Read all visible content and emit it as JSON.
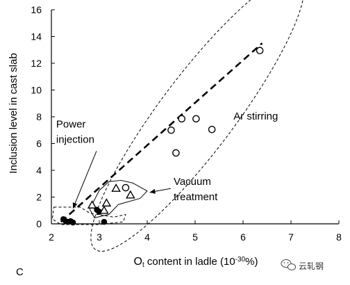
{
  "panel_label": "C",
  "watermark": {
    "text": "云轧钢",
    "icon": "wechat-icon"
  },
  "chart_data": {
    "type": "scatter",
    "xlabel": "O",
    "xlabel_sub": "t",
    "xlabel_rest": " content in ladle (10",
    "xlabel_sup": "-30",
    "xlabel_end": "%)",
    "ylabel": "Inclusion level in cast slab",
    "xlim": [
      2,
      8
    ],
    "ylim": [
      0,
      16
    ],
    "xticks": [
      2,
      3,
      4,
      5,
      6,
      7,
      8
    ],
    "yticks": [
      0,
      2,
      4,
      6,
      8,
      10,
      12,
      14,
      16
    ],
    "grid": false,
    "series": [
      {
        "name": "Power injection",
        "marker": "filled-circle",
        "points": [
          {
            "x": 2.25,
            "y": 0.35
          },
          {
            "x": 2.3,
            "y": 0.2
          },
          {
            "x": 2.35,
            "y": 0.15
          },
          {
            "x": 2.4,
            "y": 0.2
          },
          {
            "x": 2.45,
            "y": 0.1
          },
          {
            "x": 2.95,
            "y": 1.05
          },
          {
            "x": 3.0,
            "y": 0.9
          },
          {
            "x": 3.1,
            "y": 0.15
          }
        ]
      },
      {
        "name": "Vacuum treatment",
        "marker": "open-triangle",
        "points": [
          {
            "x": 2.85,
            "y": 1.4
          },
          {
            "x": 3.1,
            "y": 1.0
          },
          {
            "x": 3.15,
            "y": 1.55
          },
          {
            "x": 3.35,
            "y": 2.65
          },
          {
            "x": 3.65,
            "y": 2.15
          }
        ]
      },
      {
        "name": "Ar stirring",
        "marker": "open-circle",
        "points": [
          {
            "x": 3.55,
            "y": 2.7
          },
          {
            "x": 4.5,
            "y": 7.0
          },
          {
            "x": 4.6,
            "y": 5.3
          },
          {
            "x": 4.72,
            "y": 7.85
          },
          {
            "x": 5.02,
            "y": 7.85
          },
          {
            "x": 5.35,
            "y": 7.05
          },
          {
            "x": 6.35,
            "y": 12.95
          }
        ]
      }
    ],
    "trend_line": {
      "style": "bold-dashed",
      "points": [
        [
          2.2,
          0.15
        ],
        [
          6.4,
          13.5
        ]
      ]
    },
    "regions": [
      {
        "label": "Power injection",
        "style": "dashed",
        "path_data": [
          [
            2.05,
            1.25
          ],
          [
            2.6,
            1.25
          ],
          [
            2.8,
            0.8
          ],
          [
            3.3,
            0.5
          ],
          [
            3.55,
            0.7
          ],
          [
            3.5,
            0.15
          ],
          [
            3.0,
            -0.05
          ],
          [
            2.2,
            -0.05
          ],
          [
            2.02,
            0.35
          ],
          [
            2.05,
            1.25
          ]
        ]
      },
      {
        "label": "Vacuum treatment",
        "style": "solid",
        "path_data": [
          [
            2.8,
            1.1
          ],
          [
            3.0,
            2.5
          ],
          [
            3.2,
            3.15
          ],
          [
            3.45,
            3.25
          ],
          [
            3.7,
            3.05
          ],
          [
            4.0,
            2.45
          ],
          [
            3.85,
            1.9
          ],
          [
            3.4,
            1.45
          ],
          [
            3.2,
            0.7
          ],
          [
            2.9,
            0.45
          ],
          [
            2.8,
            1.1
          ]
        ]
      },
      {
        "label": "Ar stirring",
        "style": "dashed",
        "ellipse": {
          "cx": 5.05,
          "cy": 8.25,
          "rx": 3.55,
          "ry": 0.78,
          "angle_deg": -53
        }
      }
    ],
    "annotations": [
      {
        "text_lines": [
          "Power",
          "injection"
        ],
        "at": [
          2.1,
          7.2
        ],
        "arrow_to": [
          2.45,
          1.15
        ]
      },
      {
        "text_lines": [
          "Vacuum",
          "treatment"
        ],
        "at": [
          4.55,
          2.9
        ],
        "arrow_to": [
          4.05,
          2.35
        ]
      },
      {
        "text_lines": [
          "Ar stirring"
        ],
        "at": [
          5.8,
          7.8
        ]
      }
    ]
  }
}
